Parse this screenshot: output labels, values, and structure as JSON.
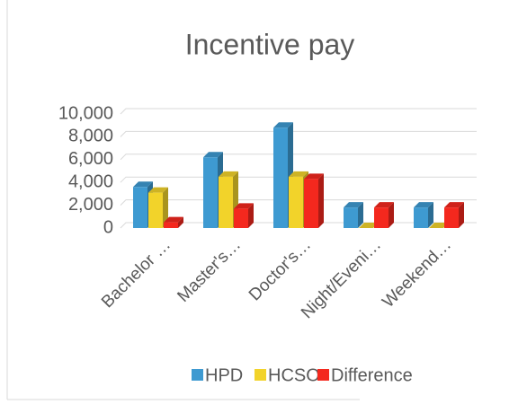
{
  "chart_data": {
    "type": "bar3d",
    "title": "Incentive pay",
    "categories": [
      "Bachelor …",
      "Master's…",
      "Doctor's…",
      "Night/Eveni…",
      "Weekend…"
    ],
    "series": [
      {
        "name": "HPD",
        "color": "#3e9ad1",
        "values": [
          3600,
          6200,
          8800,
          1800,
          1800
        ]
      },
      {
        "name": "HCSO",
        "color": "#f2d32a",
        "values": [
          3100,
          4500,
          4500,
          0,
          0
        ]
      },
      {
        "name": "Difference",
        "color": "#f4281e",
        "values": [
          500,
          1700,
          4300,
          1800,
          1800
        ]
      }
    ],
    "ylim": [
      0,
      10000
    ],
    "yticks": [
      0,
      {
        "value": 2000,
        "label": "2,000"
      },
      {
        "value": 4000,
        "label": "4,000"
      },
      {
        "value": 6000,
        "label": "6,000"
      },
      {
        "value": 8000,
        "label": "8,000"
      },
      {
        "value": 10000,
        "label": "10,000"
      }
    ],
    "grid": true
  }
}
